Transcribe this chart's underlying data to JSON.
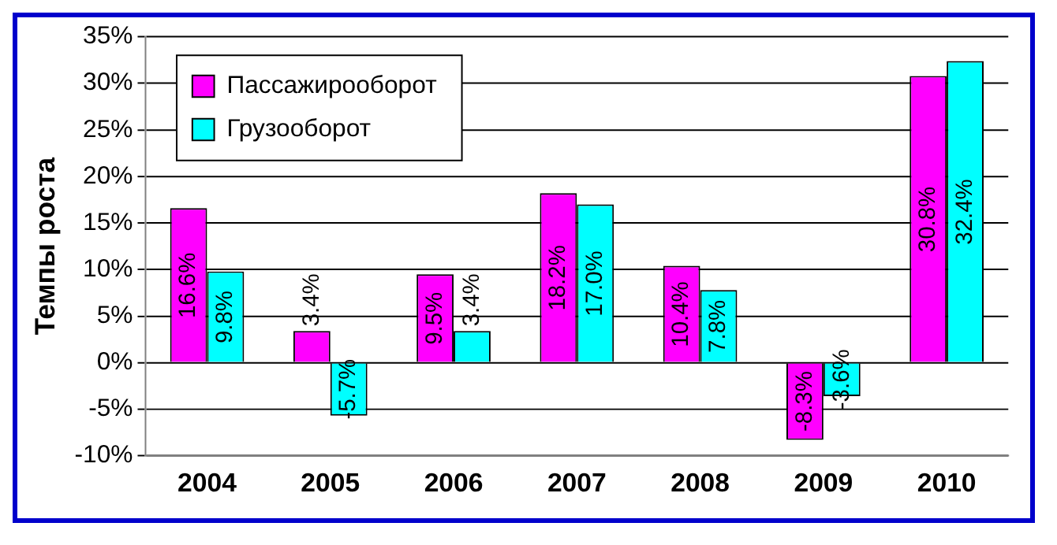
{
  "chart_data": {
    "type": "bar",
    "ylabel": "Темпы роста",
    "categories": [
      "2004",
      "2005",
      "2006",
      "2007",
      "2008",
      "2009",
      "2010"
    ],
    "series": [
      {
        "name": "Пассажирооборот",
        "color": "#ff00ff",
        "values": [
          16.6,
          3.4,
          9.5,
          18.2,
          10.4,
          -8.3,
          30.8
        ],
        "value_labels": [
          "16.6%",
          "3.4%",
          "9.5%",
          "18.2%",
          "10.4%",
          "-8.3%",
          "30.8%"
        ]
      },
      {
        "name": "Грузооборот",
        "color": "#00ffff",
        "values": [
          9.8,
          -5.7,
          3.4,
          17.0,
          7.8,
          -3.6,
          32.4
        ],
        "value_labels": [
          "9.8%",
          "-5.7%",
          "3.4%",
          "17.0%",
          "7.8%",
          "-3.6%",
          "32.4%"
        ]
      }
    ],
    "ylim": [
      -10,
      35
    ],
    "yticks": [
      {
        "value": -10,
        "label": "-10%"
      },
      {
        "value": -5,
        "label": "-5%"
      },
      {
        "value": 0,
        "label": "0%"
      },
      {
        "value": 5,
        "label": "5%"
      },
      {
        "value": 10,
        "label": "10%"
      },
      {
        "value": 15,
        "label": "15%"
      },
      {
        "value": 20,
        "label": "20%"
      },
      {
        "value": 25,
        "label": "25%"
      },
      {
        "value": 30,
        "label": "30%"
      },
      {
        "value": 35,
        "label": "35%"
      }
    ],
    "grid": "y",
    "legend": "top left"
  }
}
